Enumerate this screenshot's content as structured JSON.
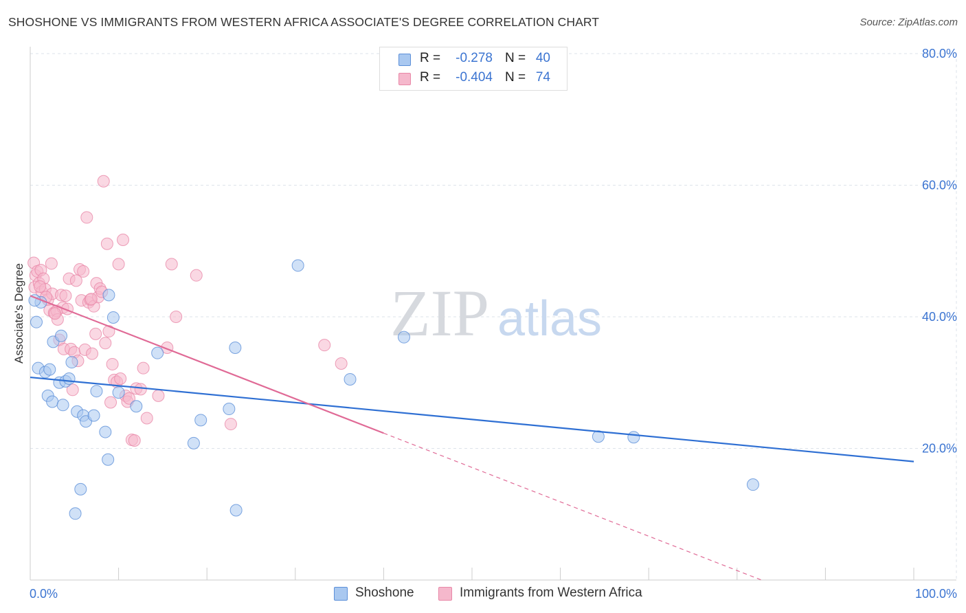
{
  "title": "SHOSHONE VS IMMIGRANTS FROM WESTERN AFRICA ASSOCIATE'S DEGREE CORRELATION CHART",
  "source": "Source: ZipAtlas.com",
  "watermark": {
    "zip": "ZIP",
    "atlas": "atlas"
  },
  "legend": {
    "rows": [
      {
        "r_label": "R =",
        "r_value": "-0.278",
        "n_label": "N =",
        "n_value": "40"
      },
      {
        "r_label": "R =",
        "r_value": "-0.404",
        "n_label": "N =",
        "n_value": "74"
      }
    ]
  },
  "bottom_legend": [
    "Shoshone",
    "Immigrants from Western Africa"
  ],
  "colors": {
    "shoshone_fill": "#a9c8f0",
    "shoshone_stroke": "#5b8fd8",
    "shoshone_line": "#2e6fd3",
    "immig_fill": "#f5b8cc",
    "immig_stroke": "#e887a7",
    "immig_line": "#e06a96",
    "tick": "#3b74d1",
    "grid": "#dde3ea"
  },
  "chart_data": {
    "type": "scatter",
    "title": "SHOSHONE VS IMMIGRANTS FROM WESTERN AFRICA ASSOCIATE'S DEGREE CORRELATION CHART",
    "xlabel": "",
    "ylabel": "Associate's Degree",
    "xlim": [
      0,
      100
    ],
    "ylim": [
      0,
      80
    ],
    "x_tick_labels": [
      "0.0%",
      "100.0%"
    ],
    "y_ticks": [
      20,
      40,
      60,
      80
    ],
    "y_tick_labels": [
      "20.0%",
      "40.0%",
      "60.0%",
      "80.0%"
    ],
    "grid": true,
    "series": [
      {
        "name": "Shoshone",
        "r": -0.278,
        "n": 40,
        "trend": {
          "x0": 0,
          "y0": 30.8,
          "x1": 100,
          "y1": 18.0,
          "dash_from": 100
        },
        "points": [
          [
            0.7,
            39.2
          ],
          [
            0.9,
            32.2
          ],
          [
            1.2,
            42.2
          ],
          [
            1.7,
            31.6
          ],
          [
            2.0,
            28.0
          ],
          [
            2.2,
            32.0
          ],
          [
            2.5,
            27.1
          ],
          [
            2.6,
            36.2
          ],
          [
            3.3,
            30.0
          ],
          [
            3.5,
            37.1
          ],
          [
            3.7,
            26.6
          ],
          [
            4.0,
            30.2
          ],
          [
            4.4,
            30.6
          ],
          [
            4.7,
            33.1
          ],
          [
            5.1,
            10.1
          ],
          [
            5.3,
            25.6
          ],
          [
            5.7,
            13.8
          ],
          [
            6.0,
            25.0
          ],
          [
            6.3,
            24.1
          ],
          [
            7.2,
            25.0
          ],
          [
            7.5,
            28.7
          ],
          [
            8.5,
            22.5
          ],
          [
            8.8,
            18.3
          ],
          [
            8.9,
            43.3
          ],
          [
            9.4,
            39.9
          ],
          [
            10.0,
            28.5
          ],
          [
            12.0,
            26.4
          ],
          [
            14.4,
            34.5
          ],
          [
            18.5,
            20.8
          ],
          [
            19.3,
            24.3
          ],
          [
            22.5,
            26.0
          ],
          [
            23.2,
            35.3
          ],
          [
            23.3,
            10.6
          ],
          [
            30.3,
            47.8
          ],
          [
            36.2,
            30.5
          ],
          [
            42.3,
            36.9
          ],
          [
            64.3,
            21.8
          ],
          [
            68.3,
            21.7
          ],
          [
            81.8,
            14.5
          ],
          [
            0.5,
            42.5
          ]
        ]
      },
      {
        "name": "Immigrants from Western Africa",
        "r": -0.404,
        "n": 74,
        "trend": {
          "x0": 0,
          "y0": 43.2,
          "x1": 100,
          "y1": -9.0,
          "dash_from": 40
        },
        "points": [
          [
            0.4,
            48.2
          ],
          [
            0.5,
            44.5
          ],
          [
            0.6,
            46.3
          ],
          [
            0.8,
            46.9
          ],
          [
            1.0,
            45.1
          ],
          [
            1.2,
            47.1
          ],
          [
            1.3,
            43.8
          ],
          [
            1.5,
            45.8
          ],
          [
            1.7,
            44.2
          ],
          [
            2.0,
            42.6
          ],
          [
            2.2,
            41.0
          ],
          [
            2.4,
            48.1
          ],
          [
            2.5,
            43.5
          ],
          [
            2.7,
            40.6
          ],
          [
            3.0,
            40.9
          ],
          [
            3.1,
            39.6
          ],
          [
            3.3,
            36.5
          ],
          [
            3.5,
            43.3
          ],
          [
            3.7,
            41.4
          ],
          [
            3.8,
            35.1
          ],
          [
            4.0,
            43.2
          ],
          [
            4.2,
            41.2
          ],
          [
            4.4,
            45.8
          ],
          [
            4.6,
            35.1
          ],
          [
            4.8,
            28.9
          ],
          [
            5.0,
            34.6
          ],
          [
            5.2,
            45.5
          ],
          [
            5.4,
            33.3
          ],
          [
            5.6,
            47.2
          ],
          [
            5.8,
            42.5
          ],
          [
            6.0,
            46.9
          ],
          [
            6.2,
            35.0
          ],
          [
            6.4,
            55.1
          ],
          [
            6.6,
            42.2
          ],
          [
            6.8,
            42.6
          ],
          [
            7.0,
            34.4
          ],
          [
            7.2,
            41.6
          ],
          [
            7.4,
            37.4
          ],
          [
            7.5,
            45.1
          ],
          [
            7.7,
            43.0
          ],
          [
            7.9,
            44.3
          ],
          [
            8.1,
            43.8
          ],
          [
            8.3,
            60.6
          ],
          [
            8.5,
            36.0
          ],
          [
            8.7,
            51.1
          ],
          [
            8.9,
            37.8
          ],
          [
            9.1,
            27.0
          ],
          [
            9.3,
            32.8
          ],
          [
            9.5,
            30.4
          ],
          [
            9.8,
            30.1
          ],
          [
            10.0,
            48.0
          ],
          [
            10.2,
            30.6
          ],
          [
            10.5,
            51.7
          ],
          [
            10.8,
            28.0
          ],
          [
            11.0,
            27.1
          ],
          [
            11.2,
            27.6
          ],
          [
            11.5,
            21.3
          ],
          [
            11.8,
            21.2
          ],
          [
            12.0,
            29.1
          ],
          [
            12.5,
            29.0
          ],
          [
            12.8,
            32.2
          ],
          [
            13.2,
            24.6
          ],
          [
            14.5,
            28.0
          ],
          [
            15.5,
            35.3
          ],
          [
            16.0,
            48.0
          ],
          [
            16.5,
            40.0
          ],
          [
            18.8,
            46.3
          ],
          [
            22.7,
            23.7
          ],
          [
            33.3,
            35.7
          ],
          [
            35.2,
            32.9
          ],
          [
            1.1,
            44.6
          ],
          [
            1.8,
            43.0
          ],
          [
            6.9,
            42.7
          ],
          [
            2.8,
            40.5
          ]
        ]
      }
    ]
  }
}
